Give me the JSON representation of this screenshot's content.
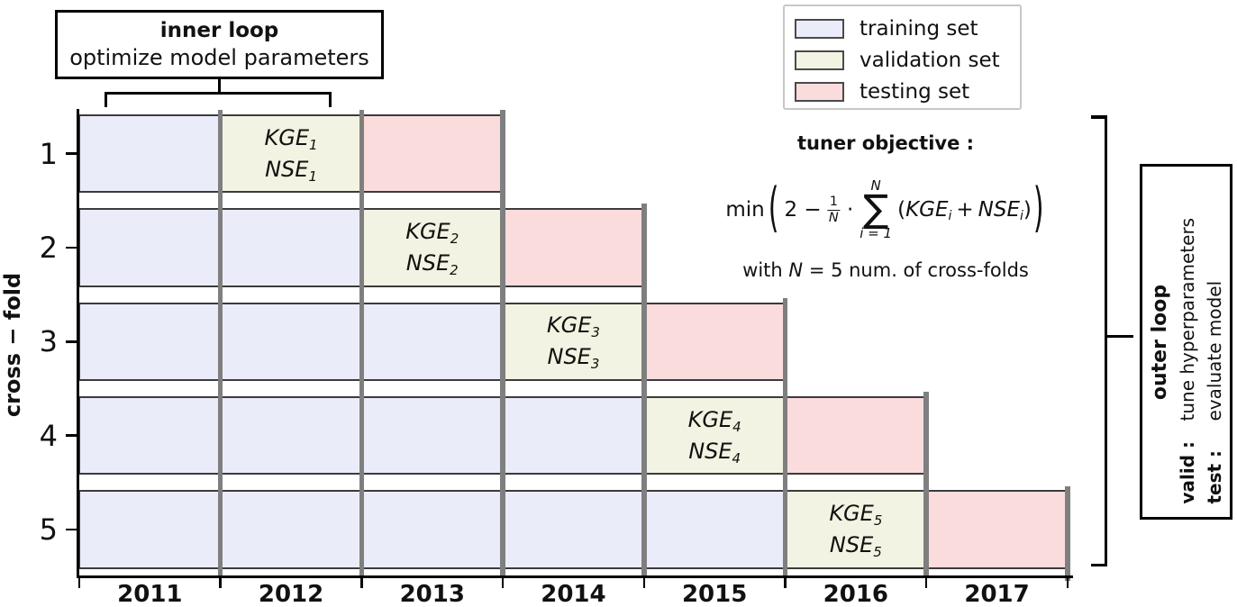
{
  "inner_loop": {
    "title": "inner loop",
    "subtitle": "optimize model parameters"
  },
  "legend": {
    "items": [
      {
        "label": "training set",
        "color_key": "training"
      },
      {
        "label": "validation set",
        "color_key": "validation"
      },
      {
        "label": "testing set",
        "color_key": "testing"
      }
    ]
  },
  "y_axis": {
    "label": "cross − fold"
  },
  "x_axis": {
    "years": [
      "2011",
      "2012",
      "2013",
      "2014",
      "2015",
      "2016",
      "2017"
    ]
  },
  "grid": {
    "metrics": {
      "kge": "KGE",
      "nse": "NSE"
    },
    "folds": [
      {
        "fold": "1",
        "index": "1"
      },
      {
        "fold": "2",
        "index": "2"
      },
      {
        "fold": "3",
        "index": "3"
      },
      {
        "fold": "4",
        "index": "4"
      },
      {
        "fold": "5",
        "index": "5"
      }
    ]
  },
  "tuner": {
    "title": "tuner objective :",
    "min": "min",
    "lead": "2 −",
    "frac_num": "1",
    "frac_den": "N",
    "dot": "·",
    "sum_top": "N",
    "sum_symbol": "∑",
    "sum_bottom": "i = 1",
    "open_paren": "(",
    "kge": "KGE",
    "sub_i": "i",
    "plus": "+",
    "nse": "NSE",
    "close_paren": ")",
    "note_prefix": "with",
    "note_var": "N",
    "note_suffix": "= 5 num. of cross-folds"
  },
  "outer_loop": {
    "title": "outer loop",
    "valid_label": "valid :",
    "valid_text": "tune hyperparameters",
    "test_label": "test :",
    "test_text": "evaluate model"
  },
  "colors": {
    "training": "#ebecf9",
    "validation": "#f3f3e3",
    "testing": "#fbdcdd",
    "cell_border": "#3b3b3b",
    "grid_line": "#7f7f7f",
    "axis": "#000000",
    "legend_border": "#c8c8c8",
    "swatch_border": "#4a4a4a"
  },
  "chart_data": {
    "type": "table",
    "title": "nested cross-validation scheme",
    "xlabel_ticks": [
      "2011",
      "2012",
      "2013",
      "2014",
      "2015",
      "2016",
      "2017"
    ],
    "ylabel": "cross − fold",
    "yticks": [
      "1",
      "2",
      "3",
      "4",
      "5"
    ],
    "legend_entries": [
      "training set",
      "validation set",
      "testing set"
    ],
    "rows": [
      {
        "fold": 1,
        "training_years": [
          "2011"
        ],
        "validation_year": "2012",
        "validation_labels": [
          "KGE₁",
          "NSE₁"
        ],
        "testing_year": "2013"
      },
      {
        "fold": 2,
        "training_years": [
          "2011",
          "2012"
        ],
        "validation_year": "2013",
        "validation_labels": [
          "KGE₂",
          "NSE₂"
        ],
        "testing_year": "2014"
      },
      {
        "fold": 3,
        "training_years": [
          "2011",
          "2012",
          "2013"
        ],
        "validation_year": "2014",
        "validation_labels": [
          "KGE₃",
          "NSE₃"
        ],
        "testing_year": "2015"
      },
      {
        "fold": 4,
        "training_years": [
          "2011",
          "2012",
          "2013",
          "2014"
        ],
        "validation_year": "2015",
        "validation_labels": [
          "KGE₄",
          "NSE₄"
        ],
        "testing_year": "2016"
      },
      {
        "fold": 5,
        "training_years": [
          "2011",
          "2012",
          "2013",
          "2014",
          "2015"
        ],
        "validation_year": "2016",
        "validation_labels": [
          "KGE₅",
          "NSE₅"
        ],
        "testing_year": "2017"
      }
    ],
    "annotations": [
      "inner loop: optimize model parameters",
      "tuner objective : min( 2 − 1/N · ∑ i=1..N (KGEᵢ + NSEᵢ) ) with N = 5 num. of cross-folds",
      "outer loop — valid : tune hyperparameters, test : evaluate model"
    ]
  }
}
